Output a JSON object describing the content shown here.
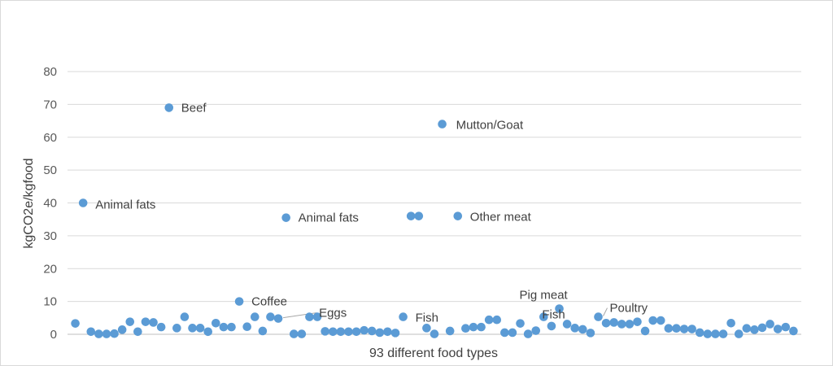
{
  "chart_data": {
    "type": "scatter",
    "title": "",
    "xlabel": "93 different food types",
    "ylabel": "kgCO2e/kgfood",
    "ylim": [
      0,
      80
    ],
    "y_ticks": [
      0,
      10,
      20,
      30,
      40,
      50,
      60,
      70,
      80
    ],
    "xlim": [
      0,
      94
    ],
    "grid": "horizontal",
    "legend": "none",
    "colors": {
      "marker": "#5b9bd5",
      "grid": "#d9d9d9",
      "axis": "#bfbfbf",
      "text": "#595959"
    },
    "x": [
      1,
      2,
      3,
      4,
      5,
      6,
      7,
      8,
      9,
      10,
      11,
      12,
      13,
      14,
      15,
      16,
      17,
      18,
      19,
      20,
      21,
      22,
      23,
      24,
      25,
      26,
      27,
      28,
      29,
      30,
      31,
      32,
      33,
      34,
      35,
      36,
      37,
      38,
      39,
      40,
      41,
      42,
      43,
      44,
      45,
      46,
      47,
      48,
      49,
      50,
      51,
      52,
      53,
      54,
      55,
      56,
      57,
      58,
      59,
      60,
      61,
      62,
      63,
      64,
      65,
      66,
      67,
      68,
      69,
      70,
      71,
      72,
      73,
      74,
      75,
      76,
      77,
      78,
      79,
      80,
      81,
      82,
      83,
      84,
      85,
      86,
      87,
      88,
      89,
      90,
      91,
      92,
      93
    ],
    "y": [
      3.3,
      40,
      0.8,
      0.1,
      0.1,
      0.2,
      1.4,
      3.8,
      0.8,
      3.8,
      3.6,
      2.2,
      69,
      1.9,
      5.3,
      1.9,
      1.9,
      0.8,
      3.4,
      2.2,
      2.2,
      10,
      2.3,
      5.3,
      1.0,
      5.3,
      4.8,
      35.5,
      0.1,
      0.1,
      5.3,
      5.3,
      0.9,
      0.8,
      0.8,
      0.8,
      0.8,
      1.2,
      1.0,
      0.5,
      0.8,
      0.4,
      5.3,
      36,
      36,
      1.9,
      0.1,
      64,
      1.0,
      36,
      1.8,
      2.2,
      2.2,
      4.4,
      4.4,
      0.5,
      0.5,
      3.3,
      0.1,
      1.1,
      5.3,
      2.5,
      7.8,
      3.1,
      1.9,
      1.5,
      0.4,
      5.3,
      3.4,
      3.6,
      3.1,
      3.1,
      3.8,
      1.0,
      4.2,
      4.2,
      1.8,
      1.8,
      1.6,
      1.6,
      0.5,
      0.1,
      0.1,
      0.1,
      3.4,
      0.1,
      1.8,
      1.4,
      2.0,
      3.1,
      1.6,
      2.2,
      1.0
    ],
    "annotations": [
      {
        "label": "Animal fats",
        "point": 2,
        "leader": false
      },
      {
        "label": "Beef",
        "point": 13,
        "leader": false
      },
      {
        "label": "Coffee",
        "point": 22,
        "leader": false
      },
      {
        "label": "Animal fats",
        "point": 28,
        "leader": false
      },
      {
        "label": "Eggs",
        "point": 27,
        "leader": true
      },
      {
        "label": "Fish",
        "point": 43,
        "leader": false
      },
      {
        "label": "Mutton/Goat",
        "point": 48,
        "leader": false
      },
      {
        "label": "Other meat",
        "point": 50,
        "leader": false
      },
      {
        "label": "Pig meat",
        "point": 63,
        "leader": false
      },
      {
        "label": "Fish",
        "point": 61,
        "leader": false
      },
      {
        "label": "Poultry",
        "point": 68,
        "leader": true
      }
    ]
  }
}
